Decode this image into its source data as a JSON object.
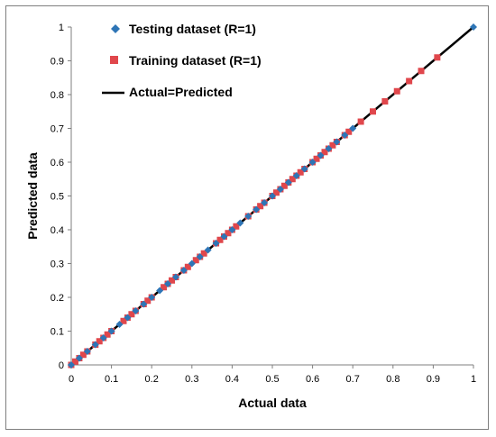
{
  "chart_data": {
    "type": "scatter",
    "xlabel": "Actual data",
    "ylabel": "Predicted data",
    "xlim": [
      0,
      1
    ],
    "ylim": [
      0,
      1
    ],
    "x_ticks": [
      "0",
      "0.1",
      "0.2",
      "0.3",
      "0.4",
      "0.5",
      "0.6",
      "0.7",
      "0.8",
      "0.9",
      "1"
    ],
    "y_ticks": [
      "0",
      "0.1",
      "0.2",
      "0.3",
      "0.4",
      "0.5",
      "0.6",
      "0.7",
      "0.8",
      "0.9",
      "1"
    ],
    "grid": false,
    "legend_position": "top-left",
    "series": [
      {
        "name": "Testing dataset (R=1)",
        "marker": "diamond",
        "color": "#2e75b6",
        "points": [
          [
            0.0,
            0.0
          ],
          [
            0.02,
            0.02
          ],
          [
            0.04,
            0.04
          ],
          [
            0.06,
            0.06
          ],
          [
            0.08,
            0.08
          ],
          [
            0.1,
            0.1
          ],
          [
            0.12,
            0.12
          ],
          [
            0.14,
            0.14
          ],
          [
            0.16,
            0.16
          ],
          [
            0.18,
            0.18
          ],
          [
            0.2,
            0.2
          ],
          [
            0.22,
            0.22
          ],
          [
            0.24,
            0.24
          ],
          [
            0.26,
            0.26
          ],
          [
            0.28,
            0.28
          ],
          [
            0.3,
            0.3
          ],
          [
            0.32,
            0.32
          ],
          [
            0.34,
            0.34
          ],
          [
            0.36,
            0.36
          ],
          [
            0.38,
            0.38
          ],
          [
            0.4,
            0.4
          ],
          [
            0.42,
            0.42
          ],
          [
            0.44,
            0.44
          ],
          [
            0.46,
            0.46
          ],
          [
            0.48,
            0.48
          ],
          [
            0.5,
            0.5
          ],
          [
            0.52,
            0.52
          ],
          [
            0.54,
            0.54
          ],
          [
            0.56,
            0.56
          ],
          [
            0.58,
            0.58
          ],
          [
            0.6,
            0.6
          ],
          [
            0.62,
            0.62
          ],
          [
            0.64,
            0.64
          ],
          [
            0.66,
            0.66
          ],
          [
            0.68,
            0.68
          ],
          [
            0.7,
            0.7
          ],
          [
            1.0,
            1.0
          ]
        ]
      },
      {
        "name": "Training dataset (R=1)",
        "marker": "square",
        "color": "#e0474c",
        "points": [
          [
            0.0,
            0.0
          ],
          [
            0.01,
            0.01
          ],
          [
            0.02,
            0.02
          ],
          [
            0.03,
            0.03
          ],
          [
            0.04,
            0.04
          ],
          [
            0.06,
            0.06
          ],
          [
            0.07,
            0.07
          ],
          [
            0.08,
            0.08
          ],
          [
            0.09,
            0.09
          ],
          [
            0.1,
            0.1
          ],
          [
            0.13,
            0.13
          ],
          [
            0.14,
            0.14
          ],
          [
            0.15,
            0.15
          ],
          [
            0.16,
            0.16
          ],
          [
            0.18,
            0.18
          ],
          [
            0.19,
            0.19
          ],
          [
            0.2,
            0.2
          ],
          [
            0.23,
            0.23
          ],
          [
            0.24,
            0.24
          ],
          [
            0.25,
            0.25
          ],
          [
            0.26,
            0.26
          ],
          [
            0.28,
            0.28
          ],
          [
            0.29,
            0.29
          ],
          [
            0.31,
            0.31
          ],
          [
            0.32,
            0.32
          ],
          [
            0.33,
            0.33
          ],
          [
            0.36,
            0.36
          ],
          [
            0.37,
            0.37
          ],
          [
            0.38,
            0.38
          ],
          [
            0.39,
            0.39
          ],
          [
            0.4,
            0.4
          ],
          [
            0.41,
            0.41
          ],
          [
            0.44,
            0.44
          ],
          [
            0.46,
            0.46
          ],
          [
            0.47,
            0.47
          ],
          [
            0.48,
            0.48
          ],
          [
            0.5,
            0.5
          ],
          [
            0.51,
            0.51
          ],
          [
            0.52,
            0.52
          ],
          [
            0.53,
            0.53
          ],
          [
            0.54,
            0.54
          ],
          [
            0.55,
            0.55
          ],
          [
            0.56,
            0.56
          ],
          [
            0.57,
            0.57
          ],
          [
            0.58,
            0.58
          ],
          [
            0.6,
            0.6
          ],
          [
            0.61,
            0.61
          ],
          [
            0.62,
            0.62
          ],
          [
            0.63,
            0.63
          ],
          [
            0.64,
            0.64
          ],
          [
            0.65,
            0.65
          ],
          [
            0.66,
            0.66
          ],
          [
            0.68,
            0.68
          ],
          [
            0.69,
            0.69
          ],
          [
            0.72,
            0.72
          ],
          [
            0.75,
            0.75
          ],
          [
            0.78,
            0.78
          ],
          [
            0.81,
            0.81
          ],
          [
            0.84,
            0.84
          ],
          [
            0.87,
            0.87
          ],
          [
            0.91,
            0.91
          ]
        ]
      },
      {
        "name": "Actual=Predicted",
        "marker": "line",
        "color": "#000000",
        "points": [
          [
            0,
            0
          ],
          [
            1,
            1
          ]
        ]
      }
    ]
  }
}
